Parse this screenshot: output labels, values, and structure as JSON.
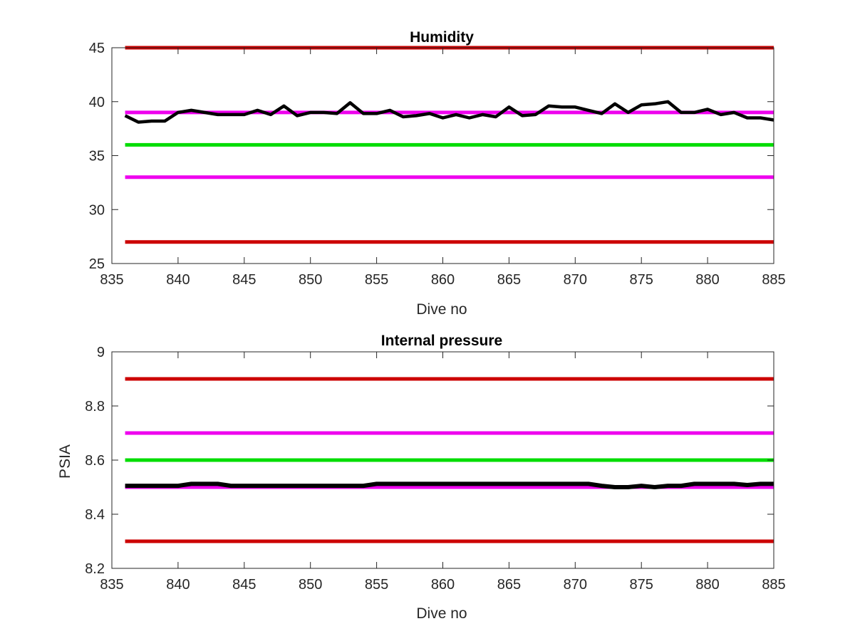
{
  "chart_data": [
    {
      "type": "line",
      "title": "Humidity",
      "xlabel": "Dive no",
      "ylabel": "",
      "xlim": [
        835,
        885
      ],
      "ylim": [
        25,
        45
      ],
      "xticks": [
        835,
        840,
        845,
        850,
        855,
        860,
        865,
        870,
        875,
        880,
        885
      ],
      "yticks": [
        25,
        30,
        35,
        40,
        45
      ],
      "grid": false,
      "reference_lines": [
        {
          "y": 45,
          "color": "#cc0000"
        },
        {
          "y": 39,
          "color": "#ee00ee"
        },
        {
          "y": 36,
          "color": "#00dd00"
        },
        {
          "y": 33,
          "color": "#ee00ee"
        },
        {
          "y": 27,
          "color": "#cc0000"
        }
      ],
      "series": [
        {
          "color": "#000000",
          "x": [
            836,
            837,
            838,
            839,
            840,
            841,
            842,
            843,
            844,
            845,
            846,
            847,
            848,
            849,
            850,
            851,
            852,
            853,
            854,
            855,
            856,
            857,
            858,
            859,
            860,
            861,
            862,
            863,
            864,
            865,
            866,
            867,
            868,
            869,
            870,
            871,
            872,
            873,
            874,
            875,
            876,
            877,
            878,
            879,
            880,
            881,
            882,
            883,
            884,
            885
          ],
          "y": [
            38.7,
            38.1,
            38.2,
            38.2,
            39.0,
            39.2,
            39.0,
            38.8,
            38.8,
            38.8,
            39.2,
            38.8,
            39.6,
            38.7,
            39.0,
            39.0,
            38.9,
            39.9,
            38.9,
            38.9,
            39.2,
            38.6,
            38.7,
            38.9,
            38.5,
            38.8,
            38.5,
            38.8,
            38.6,
            39.5,
            38.7,
            38.8,
            39.6,
            39.5,
            39.5,
            39.2,
            38.9,
            39.8,
            39.0,
            39.7,
            39.8,
            40.0,
            39.0,
            39.0,
            39.3,
            38.8,
            39.0,
            38.5,
            38.5,
            38.3
          ]
        }
      ]
    },
    {
      "type": "line",
      "title": "Internal pressure",
      "xlabel": "Dive no",
      "ylabel": "PSIA",
      "xlim": [
        835,
        885
      ],
      "ylim": [
        8.2,
        9
      ],
      "xticks": [
        835,
        840,
        845,
        850,
        855,
        860,
        865,
        870,
        875,
        880,
        885
      ],
      "yticks": [
        8.2,
        8.4,
        8.6,
        8.8,
        9
      ],
      "ytick_labels": [
        "8.2",
        "8.4",
        "8.6",
        "8.8",
        "9"
      ],
      "grid": false,
      "reference_lines": [
        {
          "y": 8.9,
          "color": "#cc0000"
        },
        {
          "y": 8.7,
          "color": "#ee00ee"
        },
        {
          "y": 8.6,
          "color": "#00dd00"
        },
        {
          "y": 8.5,
          "color": "#ee00ee"
        },
        {
          "y": 8.3,
          "color": "#cc0000"
        }
      ],
      "series": [
        {
          "color": "#000000",
          "x": [
            836,
            838,
            840,
            841,
            842,
            843,
            844,
            845,
            850,
            854,
            855,
            856,
            860,
            865,
            870,
            871,
            872,
            873,
            874,
            875,
            876,
            877,
            878,
            879,
            880,
            881,
            882,
            883,
            884,
            885
          ],
          "y": [
            8.505,
            8.505,
            8.505,
            8.512,
            8.512,
            8.512,
            8.505,
            8.505,
            8.505,
            8.505,
            8.512,
            8.512,
            8.512,
            8.512,
            8.512,
            8.512,
            8.505,
            8.5,
            8.5,
            8.505,
            8.5,
            8.505,
            8.505,
            8.512,
            8.512,
            8.512,
            8.512,
            8.508,
            8.512,
            8.512
          ]
        }
      ]
    }
  ]
}
